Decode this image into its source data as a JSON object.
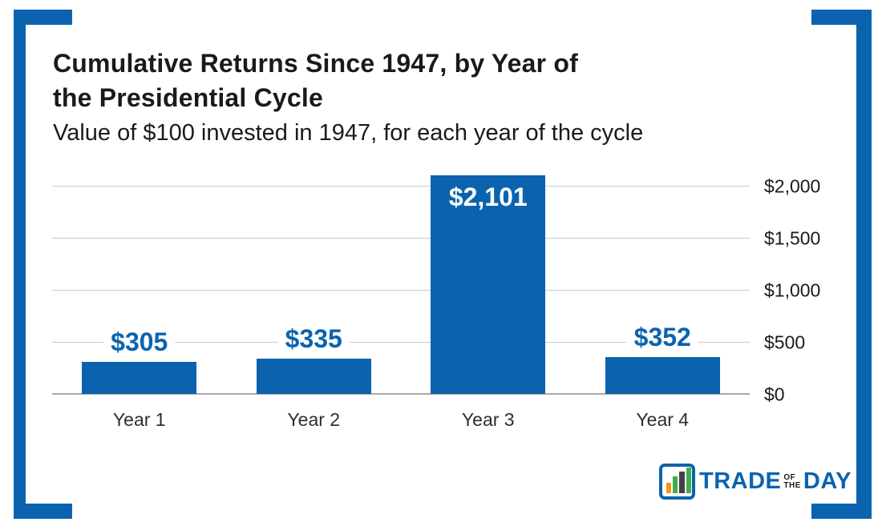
{
  "frame": {
    "accent_color": "#0b63af"
  },
  "header": {
    "title_line1": "Cumulative Returns Since 1947, by Year of",
    "title_line2": "the Presidential Cycle",
    "subtitle": "Value of $100 invested in 1947, for each year of the cycle"
  },
  "chart_data": {
    "type": "bar",
    "title": "Cumulative Returns Since 1947, by Year of the Presidential Cycle",
    "subtitle": "Value of $100 invested in 1947, for each year of the cycle",
    "categories": [
      "Year 1",
      "Year 2",
      "Year 3",
      "Year 4"
    ],
    "values": [
      305,
      335,
      2101,
      352
    ],
    "value_labels": [
      "$305",
      "$335",
      "$2,101",
      "$352"
    ],
    "label_placement": [
      "above",
      "above",
      "inside",
      "above"
    ],
    "ticks": [
      {
        "value": 0,
        "label": "$0"
      },
      {
        "value": 500,
        "label": "$500"
      },
      {
        "value": 1000,
        "label": "$1,000"
      },
      {
        "value": 1500,
        "label": "$1,500"
      },
      {
        "value": 2000,
        "label": "$2,000"
      }
    ],
    "ylim": [
      0,
      2155
    ],
    "yaxis_side": "right",
    "grid": true,
    "legend": "none",
    "bar_color": "#0b63af",
    "xlabel": "",
    "ylabel": ""
  },
  "logo": {
    "word1": "TRADE",
    "word2_line1": "OF",
    "word2_line2": "THE",
    "word3": "DAY",
    "icon": "bar-chart-icon",
    "colors": {
      "blue": "#0b63af",
      "orange": "#f7941d",
      "green": "#3fae49",
      "dark": "#414042"
    }
  }
}
